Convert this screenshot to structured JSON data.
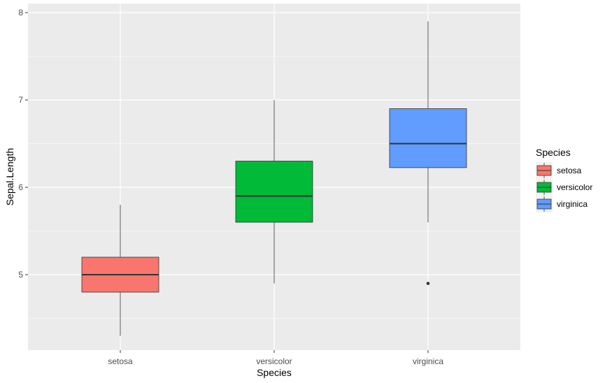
{
  "chart_data": {
    "type": "boxplot",
    "xlabel": "Species",
    "ylabel": "Sepal.Length",
    "categories": [
      "setosa",
      "versicolor",
      "virginica"
    ],
    "y_ticks": [
      "5",
      "6",
      "7",
      "8"
    ],
    "ylim": [
      4.3,
      7.9
    ],
    "grid": true,
    "legend": {
      "title": "Species",
      "position": "right",
      "entries": [
        "setosa",
        "versicolor",
        "virginica"
      ]
    },
    "boxes": [
      {
        "category": "setosa",
        "min": 4.3,
        "q1": 4.8,
        "median": 5.0,
        "q3": 5.2,
        "max": 5.8,
        "outliers": []
      },
      {
        "category": "versicolor",
        "min": 4.9,
        "q1": 5.6,
        "median": 5.9,
        "q3": 6.3,
        "max": 7.0,
        "outliers": []
      },
      {
        "category": "virginica",
        "min": 5.6,
        "q1": 6.225,
        "median": 6.5,
        "q3": 6.9,
        "max": 7.9,
        "outliers": [
          4.9
        ]
      }
    ],
    "colors": {
      "setosa": "#F8766D",
      "versicolor": "#00BA38",
      "virginica": "#619CFF",
      "panel_background": "#EBEBEB",
      "grid_line": "#FFFFFF"
    }
  }
}
